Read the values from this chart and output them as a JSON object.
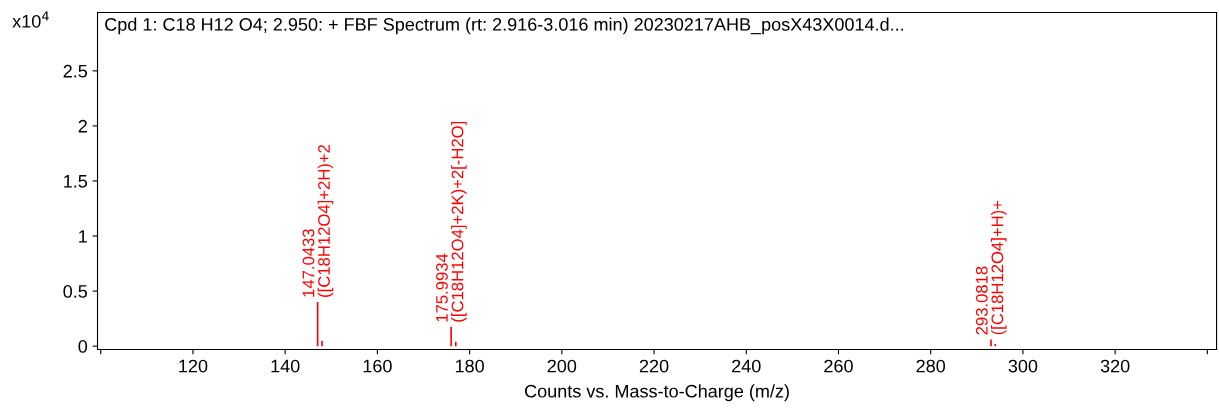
{
  "chart_data": {
    "type": "bar",
    "title": "Cpd 1: C18 H12 O4; 2.950: + FBF Spectrum (rt: 2.916-3.016 min) 20230217AHB_posX43X0014.d...",
    "xlabel": "Counts vs. Mass-to-Charge (m/z)",
    "ylabel": "x10$^{4}$",
    "x": [
      147.0433,
      148.0,
      175.9934,
      177.0,
      293.0818,
      294.0
    ],
    "series": [
      {
        "color": "#ff0000",
        "values": [
          0.4,
          0.05,
          0.175,
          0.04,
          0.06,
          0.02
        ]
      }
    ],
    "xlim": [
      99.3,
      342
    ],
    "xticks": [
      {
        "value": 100,
        "label": null
      },
      120,
      140,
      160,
      180,
      200,
      220,
      240,
      260,
      280,
      300,
      320,
      {
        "value": 340,
        "label": null
      }
    ],
    "ylim": [
      -0.03,
      3.03
    ],
    "yticks": [
      0,
      0.5,
      1,
      1.5,
      2,
      2.5
    ],
    "annotations": [
      {
        "text": "147.0433\n([C18H12O4]+2H)+2",
        "x": 147.0433,
        "y": 0.4
      },
      {
        "text": "175.9934\n([C18H12O4]+2K)+2[-H2O]",
        "x": 175.9934,
        "y": 0.175
      },
      {
        "text": "293.0818\n([C18H12O4]+H)+",
        "x": 293.0818,
        "y": 0.06
      }
    ],
    "grid": false,
    "legend": false
  }
}
